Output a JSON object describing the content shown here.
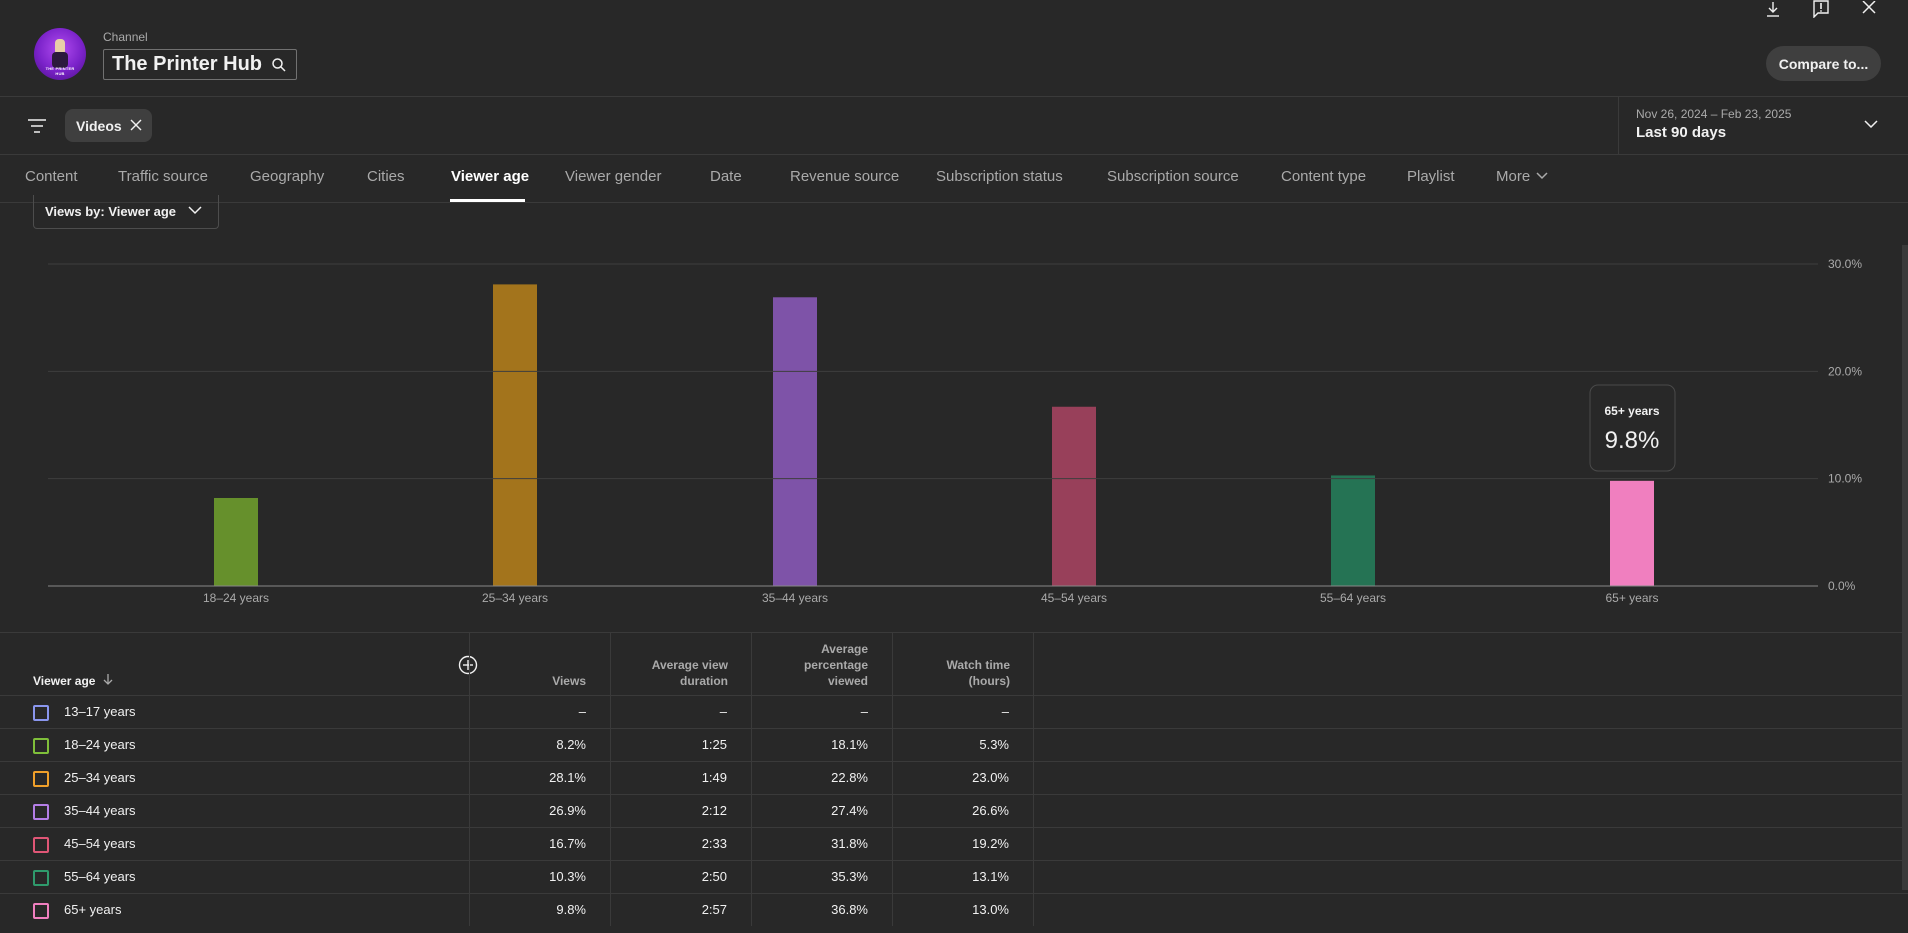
{
  "header": {
    "channel_label": "Channel",
    "channel_name": "The Printer Hub",
    "avatar_text": "THE PRINTER HUB",
    "compare_label": "Compare to..."
  },
  "filters": {
    "chip_label": "Videos",
    "date_range": "Nov 26, 2024 – Feb 23, 2025",
    "date_preset": "Last 90 days"
  },
  "tabs": [
    {
      "label": "Content"
    },
    {
      "label": "Traffic source"
    },
    {
      "label": "Geography"
    },
    {
      "label": "Cities"
    },
    {
      "label": "Viewer age",
      "active": true
    },
    {
      "label": "Viewer gender"
    },
    {
      "label": "Date"
    },
    {
      "label": "Revenue source"
    },
    {
      "label": "Subscription status"
    },
    {
      "label": "Subscription source"
    },
    {
      "label": "Content type"
    },
    {
      "label": "Playlist"
    },
    {
      "label": "More"
    }
  ],
  "metric_select": {
    "label": "Views by: Viewer age"
  },
  "chart_data": {
    "type": "bar",
    "categories": [
      "18–24 years",
      "25–34 years",
      "35–44 years",
      "45–54 years",
      "55–64 years",
      "65+ years"
    ],
    "values": [
      8.2,
      28.1,
      26.9,
      16.7,
      10.3,
      9.8
    ],
    "colors": [
      "#66902c",
      "#a3741c",
      "#7e53a8",
      "#98405a",
      "#257354",
      "#f07fbf"
    ],
    "ylim": [
      0,
      30
    ],
    "yticks": [
      "30.0%",
      "20.0%",
      "10.0%",
      "0.0%"
    ],
    "grid": true,
    "tooltip": {
      "label": "65+ years",
      "value": "9.8%"
    }
  },
  "colors": {
    "background": "#282828",
    "grid": "#3a3a3a",
    "text": "#f1f1f1",
    "muted": "#aaaaaa"
  },
  "table": {
    "sort_column": "Viewer age",
    "columns": [
      "Views",
      "Average view duration",
      "Average percentage viewed",
      "Watch time (hours)"
    ],
    "rows": [
      {
        "label": "13–17 years",
        "color": "#8a96ee",
        "views": "–",
        "avd": "–",
        "apv": "–",
        "wt": "–"
      },
      {
        "label": "18–24 years",
        "color": "#7fbf3a",
        "views": "8.2%",
        "avd": "1:25",
        "apv": "18.1%",
        "wt": "5.3%"
      },
      {
        "label": "25–34 years",
        "color": "#f0a02a",
        "views": "28.1%",
        "avd": "1:49",
        "apv": "22.8%",
        "wt": "23.0%"
      },
      {
        "label": "35–44 years",
        "color": "#b47ee6",
        "views": "26.9%",
        "avd": "2:12",
        "apv": "27.4%",
        "wt": "26.6%"
      },
      {
        "label": "45–54 years",
        "color": "#e05676",
        "views": "16.7%",
        "avd": "2:33",
        "apv": "31.8%",
        "wt": "19.2%"
      },
      {
        "label": "55–64 years",
        "color": "#2f9a6c",
        "views": "10.3%",
        "avd": "2:50",
        "apv": "35.3%",
        "wt": "13.1%"
      },
      {
        "label": "65+ years",
        "color": "#f07fbf",
        "views": "9.8%",
        "avd": "2:57",
        "apv": "36.8%",
        "wt": "13.0%"
      }
    ]
  },
  "icons": {
    "download": "download-icon",
    "feedback": "feedback-icon",
    "close": "close-icon",
    "search": "search-icon",
    "filter": "filter-icon",
    "chevron": "chevron-down-icon",
    "sort": "arrow-down-icon",
    "add_column": "add-column-icon"
  }
}
